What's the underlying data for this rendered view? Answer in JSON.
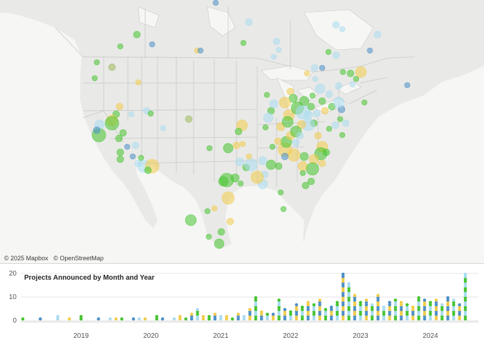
{
  "map": {
    "attribution": [
      "© 2025 Mapbox",
      "© OpenStreetMap"
    ],
    "colors": {
      "land": "#e9e9e7",
      "water": "#f6f6f5",
      "borders": "#c8c8c8",
      "green": "#45c42e",
      "yellow": "#f2cc4a",
      "lightblue": "#a9dcf0",
      "blue": "#4b8fc9",
      "olive": "#9bb95a"
    }
  },
  "chart_data": {
    "type": "bar",
    "title": "Projects Announced by Month and Year",
    "xlabel": "",
    "ylabel": "",
    "ylim": [
      0,
      20
    ],
    "y_ticks": [
      "0",
      "10",
      "20"
    ],
    "x_ticks": [
      "2019",
      "2020",
      "2021",
      "2022",
      "2023",
      "2024"
    ],
    "x_range": [
      "2018-08",
      "2024-12"
    ],
    "series_colors": [
      "#45c42e",
      "#f2cc4a",
      "#a9dcf0",
      "#4b8fc9"
    ],
    "grid": true,
    "values": [
      {
        "month": "2018-08",
        "count": 1
      },
      {
        "month": "2018-11",
        "count": 1
      },
      {
        "month": "2019-02",
        "count": 2
      },
      {
        "month": "2019-04",
        "count": 1
      },
      {
        "month": "2019-06",
        "count": 2
      },
      {
        "month": "2019-09",
        "count": 1
      },
      {
        "month": "2019-11",
        "count": 1
      },
      {
        "month": "2019-12",
        "count": 1
      },
      {
        "month": "2020-01",
        "count": 1
      },
      {
        "month": "2020-03",
        "count": 1
      },
      {
        "month": "2020-04",
        "count": 1
      },
      {
        "month": "2020-05",
        "count": 1
      },
      {
        "month": "2020-07",
        "count": 2
      },
      {
        "month": "2020-08",
        "count": 1
      },
      {
        "month": "2020-10",
        "count": 1
      },
      {
        "month": "2020-11",
        "count": 2
      },
      {
        "month": "2020-12",
        "count": 1
      },
      {
        "month": "2021-01",
        "count": 3
      },
      {
        "month": "2021-02",
        "count": 5
      },
      {
        "month": "2021-03",
        "count": 2
      },
      {
        "month": "2021-04",
        "count": 2
      },
      {
        "month": "2021-05",
        "count": 3
      },
      {
        "month": "2021-06",
        "count": 2
      },
      {
        "month": "2021-07",
        "count": 2
      },
      {
        "month": "2021-08",
        "count": 1
      },
      {
        "month": "2021-09",
        "count": 3
      },
      {
        "month": "2021-10",
        "count": 2
      },
      {
        "month": "2021-11",
        "count": 5
      },
      {
        "month": "2021-12",
        "count": 10
      },
      {
        "month": "2022-01",
        "count": 4
      },
      {
        "month": "2022-02",
        "count": 3
      },
      {
        "month": "2022-03",
        "count": 3
      },
      {
        "month": "2022-04",
        "count": 9
      },
      {
        "month": "2022-05",
        "count": 5
      },
      {
        "month": "2022-06",
        "count": 4
      },
      {
        "month": "2022-07",
        "count": 7
      },
      {
        "month": "2022-08",
        "count": 6
      },
      {
        "month": "2022-09",
        "count": 8
      },
      {
        "month": "2022-10",
        "count": 7
      },
      {
        "month": "2022-11",
        "count": 9
      },
      {
        "month": "2022-12",
        "count": 5
      },
      {
        "month": "2023-01",
        "count": 6
      },
      {
        "month": "2023-02",
        "count": 8
      },
      {
        "month": "2023-03",
        "count": 20
      },
      {
        "month": "2023-04",
        "count": 16
      },
      {
        "month": "2023-05",
        "count": 11
      },
      {
        "month": "2023-06",
        "count": 8
      },
      {
        "month": "2023-07",
        "count": 9
      },
      {
        "month": "2023-08",
        "count": 7
      },
      {
        "month": "2023-09",
        "count": 11
      },
      {
        "month": "2023-10",
        "count": 6
      },
      {
        "month": "2023-11",
        "count": 8
      },
      {
        "month": "2023-12",
        "count": 9
      },
      {
        "month": "2024-01",
        "count": 8
      },
      {
        "month": "2024-02",
        "count": 7
      },
      {
        "month": "2024-03",
        "count": 6
      },
      {
        "month": "2024-04",
        "count": 10
      },
      {
        "month": "2024-05",
        "count": 9
      },
      {
        "month": "2024-06",
        "count": 8
      },
      {
        "month": "2024-07",
        "count": 9
      },
      {
        "month": "2024-08",
        "count": 7
      },
      {
        "month": "2024-09",
        "count": 10
      },
      {
        "month": "2024-10",
        "count": 9
      },
      {
        "month": "2024-11",
        "count": 7
      },
      {
        "month": "2024-12",
        "count": 20
      }
    ]
  }
}
